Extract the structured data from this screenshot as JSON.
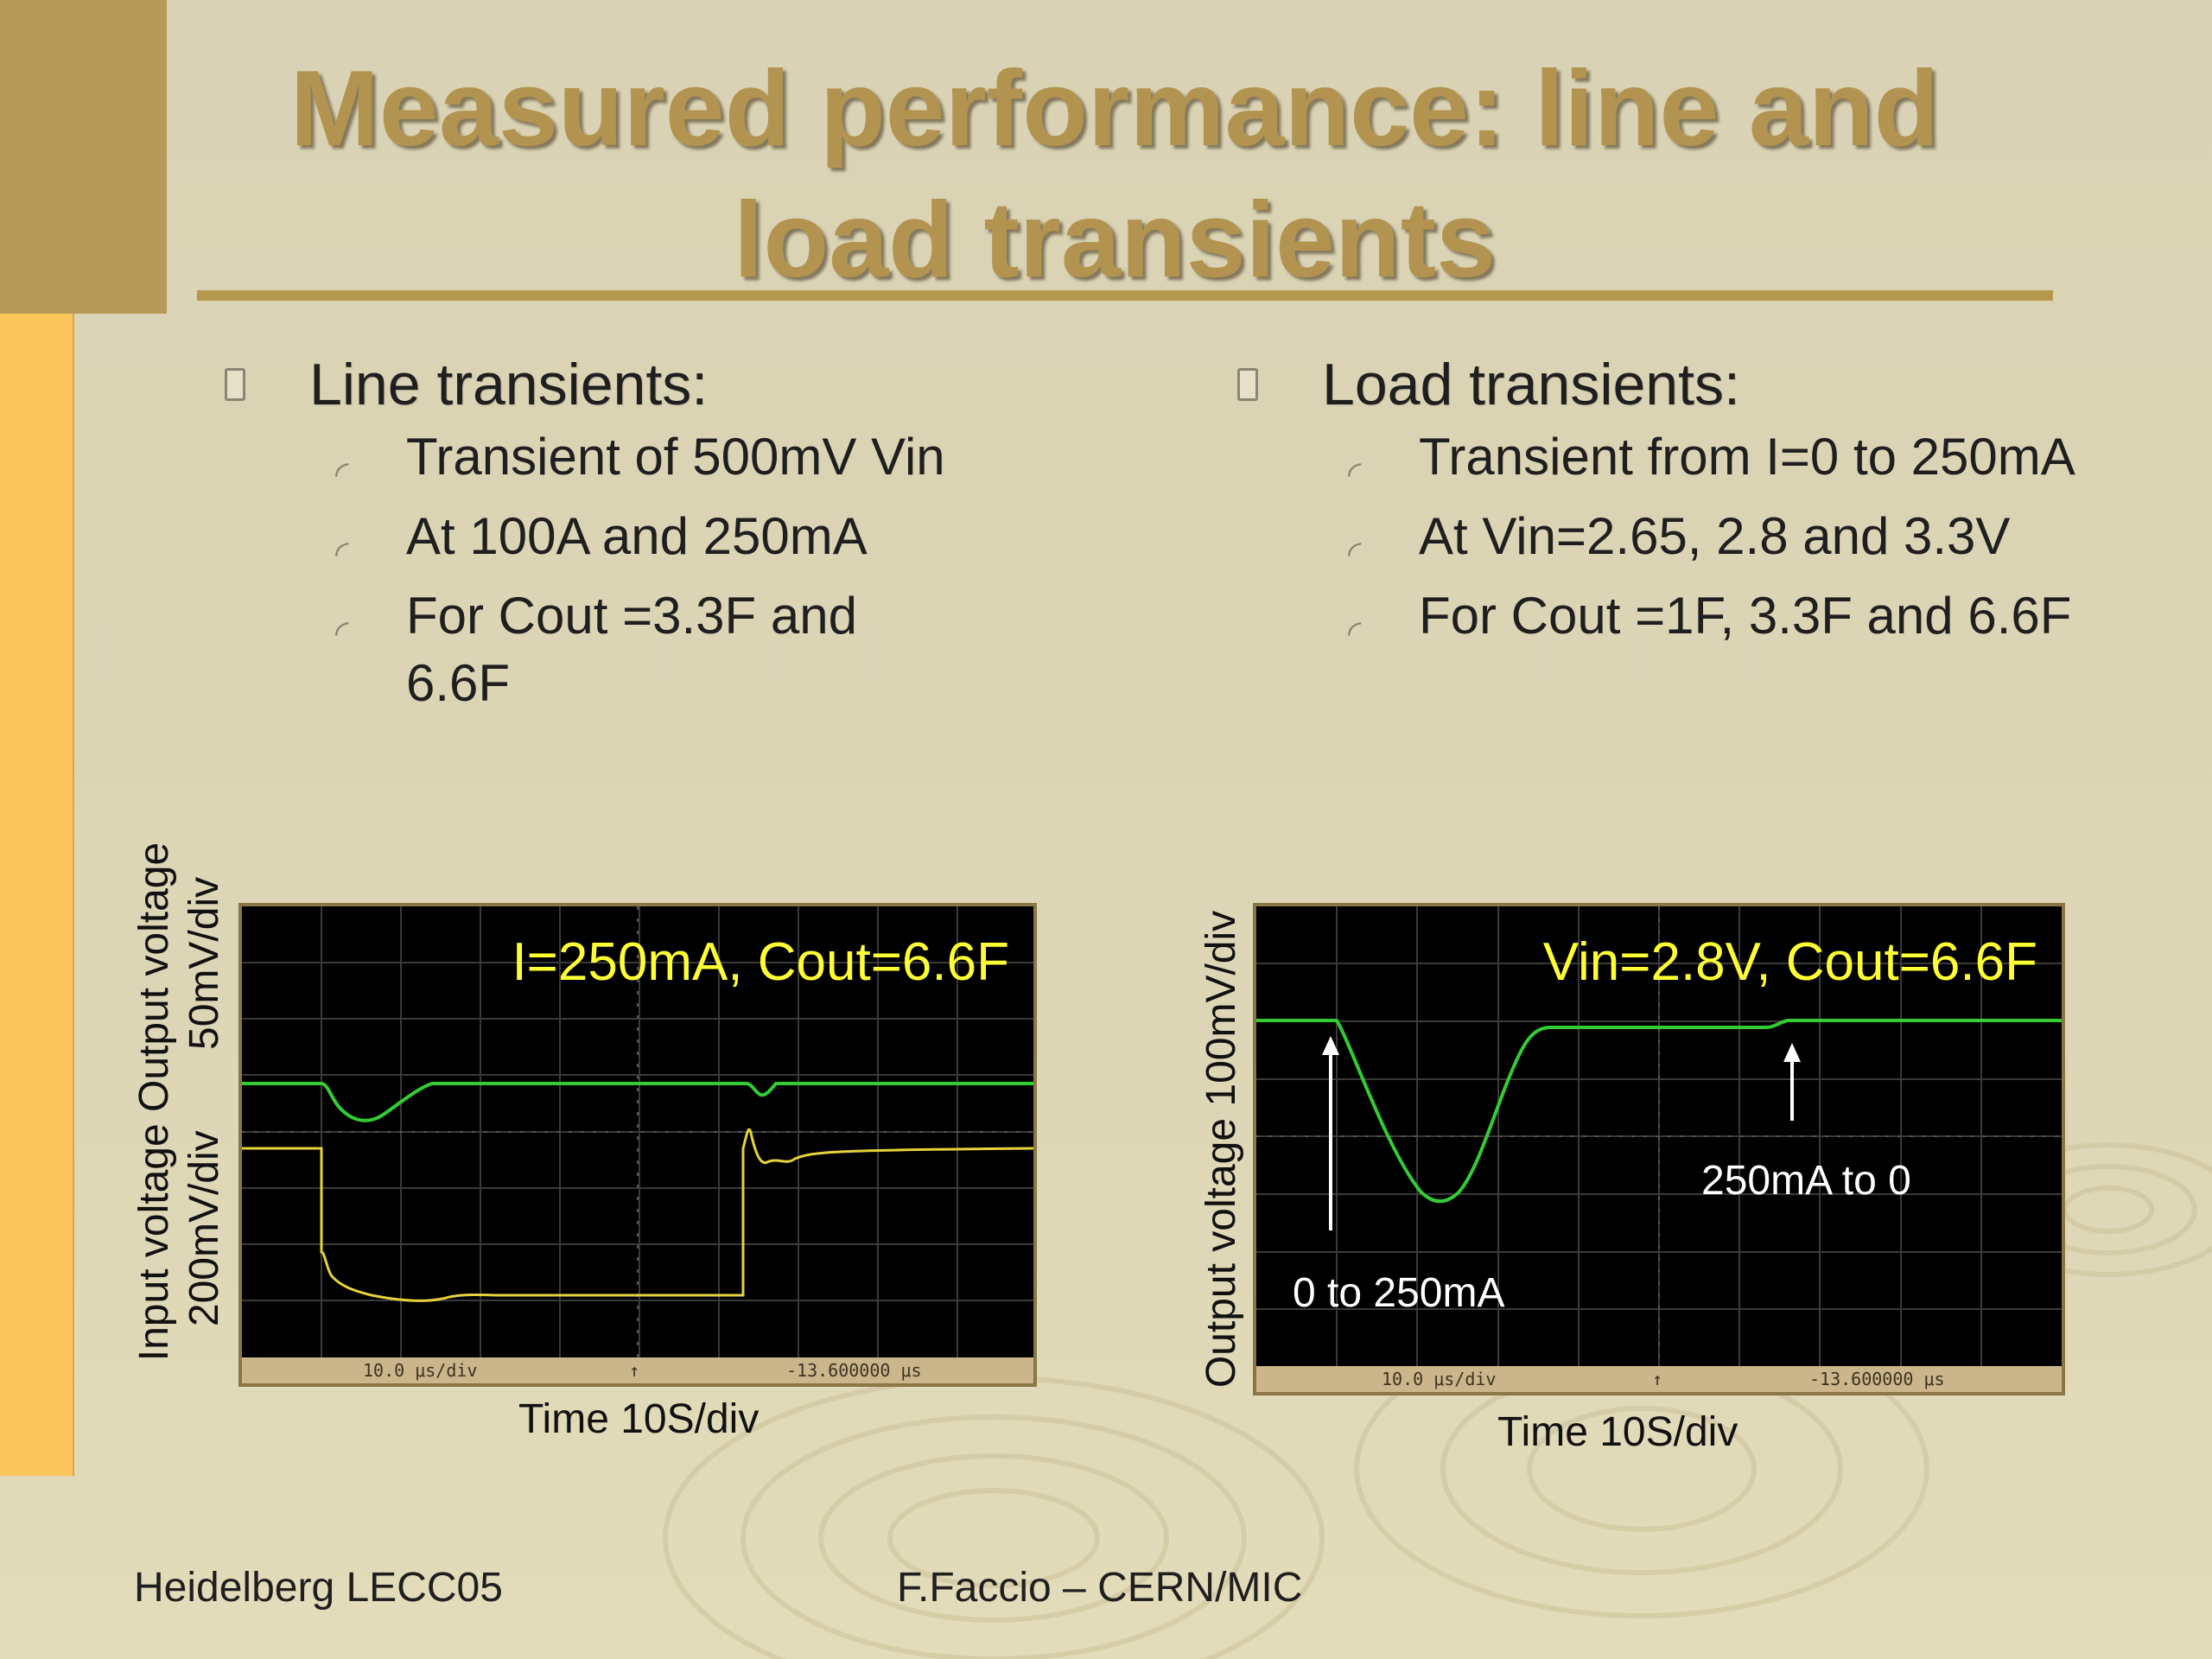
{
  "title": {
    "line1": "Measured performance: line and",
    "line2": "load transients"
  },
  "left": {
    "heading": "Line transients:",
    "items": [
      "Transient of 500mV Vin",
      "At 100⁢A and 250mA",
      "For Cout =3.3⁢F and 6.6⁢F"
    ]
  },
  "right": {
    "heading": "Load transients:",
    "items": [
      "Transient from I=0 to 250mA",
      "At Vin=2.65, 2.8 and 3.3V",
      "For Cout =1⁢F, 3.3⁢F and 6.6⁢F"
    ]
  },
  "scope_left": {
    "label": "I=250mA, Cout=6.6⁢F",
    "status_left": "10.0 μs/div",
    "status_mid": "↑",
    "status_right": "-13.600000 μs",
    "xlabel": "Time 10⁢S/div",
    "ylabel_line1": "Input voltage Output voltage",
    "ylabel_line2": "200mV/div       50mV/div"
  },
  "scope_right": {
    "label": "Vin=2.8V, Cout=6.6⁢F",
    "annotation_up": "0 to 250mA",
    "annotation_down": "250mA to 0",
    "status_left": "10.0 μs/div",
    "status_mid": "↑",
    "status_right": "-13.600000 μs",
    "xlabel": "Time 10⁢S/div",
    "ylabel": "Output voltage 100mV/div"
  },
  "footer": {
    "left": "Heidelberg LECC05",
    "center": "F.Faccio – CERN/MIC"
  },
  "colors": {
    "trace_green": "#33cc33",
    "trace_yellow": "#e6d23a",
    "title": "#b39350",
    "accent_dark": "#b69a58",
    "accent_light": "#fcc65c"
  }
}
